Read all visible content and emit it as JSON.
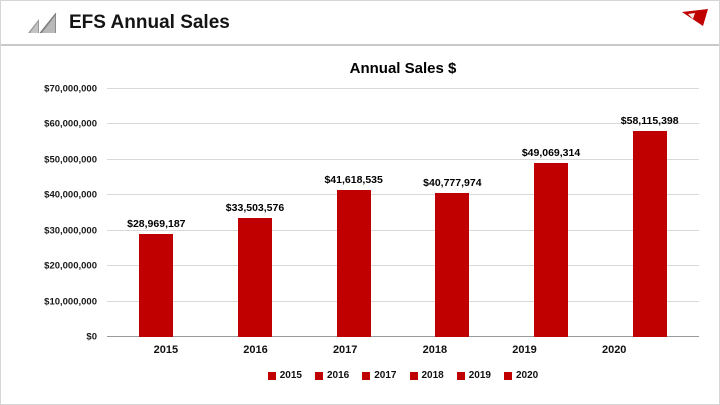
{
  "header": {
    "title": "EFS Annual Sales"
  },
  "icons": {
    "logo": "efs-logo-triangles",
    "corner": "red-pennant"
  },
  "colors": {
    "bar_red": "#C00000",
    "gridline": "#d9d9d9",
    "divider": "#c9c9c9"
  },
  "chart_data": {
    "type": "bar",
    "title": "Annual Sales $",
    "categories": [
      "2015",
      "2016",
      "2017",
      "2018",
      "2019",
      "2020"
    ],
    "values": [
      28969187,
      33503576,
      41618535,
      40777974,
      49069314,
      58115398
    ],
    "value_labels": [
      "$28,969,187",
      "$33,503,576",
      "$41,618,535",
      "$40,777,974",
      "$49,069,314",
      "$58,115,398"
    ],
    "ylim": [
      0,
      70000000
    ],
    "ytick_step": 10000000,
    "ytick_labels": [
      "$0",
      "$10,000,000",
      "$20,000,000",
      "$30,000,000",
      "$40,000,000",
      "$50,000,000",
      "$60,000,000",
      "$70,000,000"
    ],
    "xlabel": "",
    "ylabel": "",
    "grid": true,
    "legend": [
      "2015",
      "2016",
      "2017",
      "2018",
      "2019",
      "2020"
    ],
    "legend_position": "bottom",
    "bar_color": "#C00000"
  }
}
